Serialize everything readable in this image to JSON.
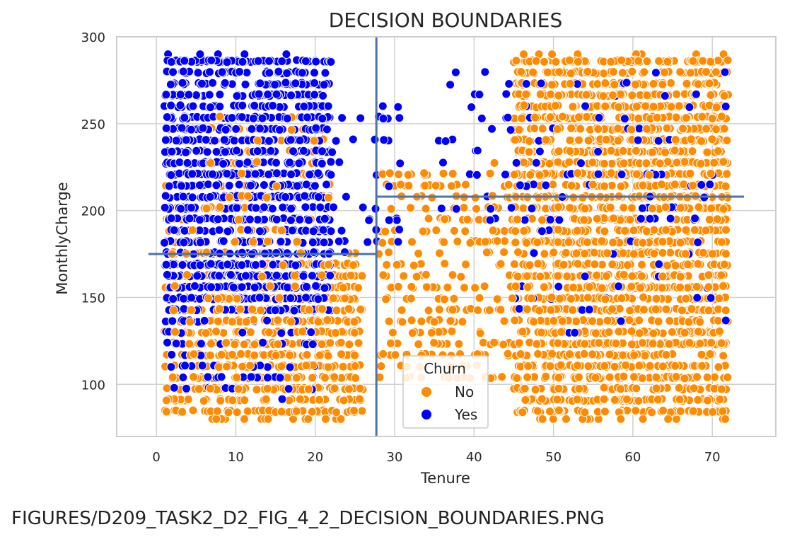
{
  "chart_data": {
    "type": "scatter",
    "title": "DECISION BOUNDARIES",
    "xlabel": "Tenure",
    "ylabel": "MonthlyCharge",
    "xlim": [
      -5,
      78
    ],
    "ylim": [
      70,
      300
    ],
    "xticks": [
      "0",
      "10",
      "20",
      "30",
      "40",
      "50",
      "60",
      "70"
    ],
    "yticks": [
      "100",
      "150",
      "200",
      "250",
      "300"
    ],
    "grid": true,
    "legend": {
      "title": "Churn",
      "placement": "lower-center",
      "entries": [
        {
          "label": "No",
          "color": "#ff8c00"
        },
        {
          "label": "Yes",
          "color": "#0000ff"
        }
      ]
    },
    "boundaries": [
      {
        "orientation": "vertical",
        "x": 27.7,
        "y_range": [
          70,
          300
        ]
      },
      {
        "orientation": "horizontal",
        "y": 175,
        "x_range": [
          -1,
          27.7
        ]
      },
      {
        "orientation": "horizontal",
        "y": 208,
        "x_range": [
          27.7,
          74
        ]
      }
    ],
    "boundary_color": "#4c72b0",
    "series": [
      {
        "name": "No",
        "color": "#ff8c00",
        "clusters": [
          {
            "x_range": [
              1,
              26
            ],
            "y_range": [
              80,
              175
            ],
            "count": 700
          },
          {
            "x_range": [
              1,
              22
            ],
            "y_range": [
              175,
              255
            ],
            "count": 160
          },
          {
            "x_range": [
              28,
              45
            ],
            "y_range": [
              100,
              225
            ],
            "count": 220
          },
          {
            "x_range": [
              45,
              72
            ],
            "y_range": [
              80,
              290
            ],
            "count": 2000
          }
        ]
      },
      {
        "name": "Yes",
        "color": "#0000ff",
        "clusters": [
          {
            "x_range": [
              1,
              22
            ],
            "y_range": [
              140,
              290
            ],
            "count": 1200
          },
          {
            "x_range": [
              20,
              31
            ],
            "y_range": [
              175,
              260
            ],
            "count": 50
          },
          {
            "x_range": [
              1,
              20
            ],
            "y_range": [
              92,
              140
            ],
            "count": 80
          },
          {
            "x_range": [
              35,
              72
            ],
            "y_range": [
              190,
              280
            ],
            "count": 100
          },
          {
            "x_range": [
              45,
              72
            ],
            "y_range": [
              130,
              200
            ],
            "count": 30
          }
        ]
      }
    ]
  },
  "caption": "FIGURES/D209_TASK2_D2_FIG_4_2_DECISION_BOUNDARIES.PNG"
}
